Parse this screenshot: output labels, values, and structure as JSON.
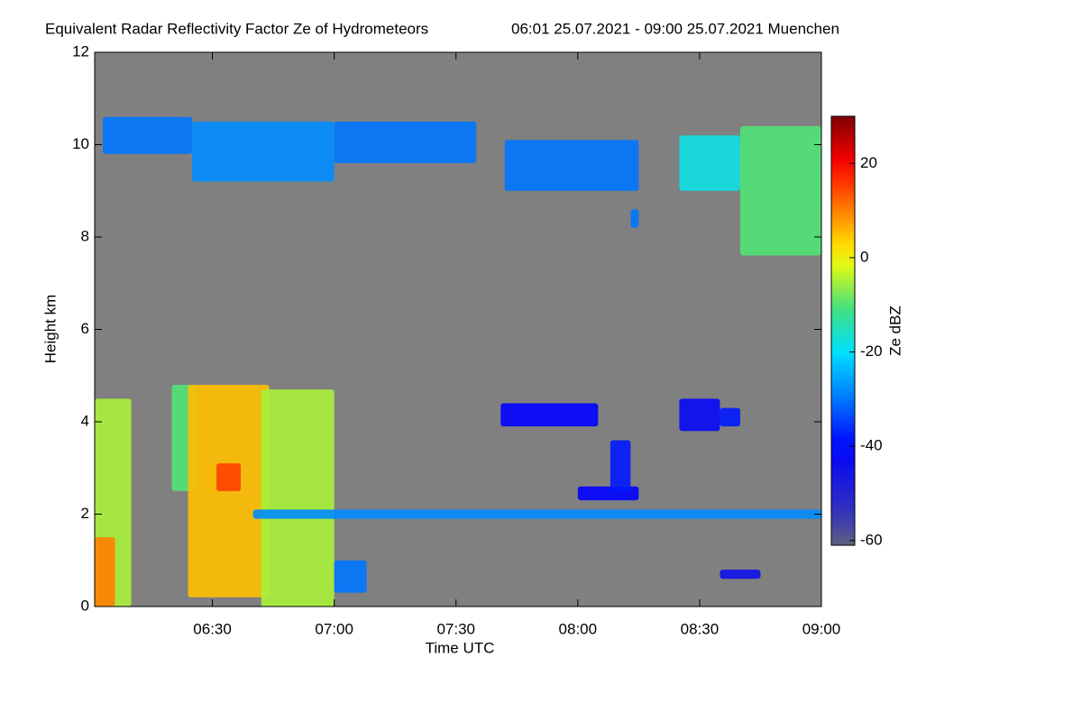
{
  "chart_data": {
    "type": "heatmap",
    "title": "Equivalent Radar Reflectivity Factor Ze of Hydrometeors",
    "subtitle": "06:01 25.07.2021 - 09:00 25.07.2021 Muenchen",
    "x_label": "Time UTC",
    "y_label": "Height km",
    "colorbar_label": "Ze dBZ",
    "xlim": [
      361,
      540
    ],
    "xticks": [
      {
        "value": 390,
        "label": "06:30"
      },
      {
        "value": 420,
        "label": "07:00"
      },
      {
        "value": 450,
        "label": "07:30"
      },
      {
        "value": 480,
        "label": "08:00"
      },
      {
        "value": 510,
        "label": "08:30"
      },
      {
        "value": 540,
        "label": "09:00"
      }
    ],
    "ylim": [
      0,
      12
    ],
    "yticks": [
      0,
      2,
      4,
      6,
      8,
      10,
      12
    ],
    "clim": [
      -61,
      30
    ],
    "cticks": [
      20,
      0,
      -20,
      -40,
      -60
    ],
    "background": "#808080",
    "echoes": {
      "t0": [
        363,
        385,
        420,
        462,
        493,
        505,
        520,
        361,
        361,
        380,
        384,
        391,
        402,
        420,
        400,
        480,
        488,
        461,
        505,
        515,
        515
      ],
      "t1": [
        385,
        420,
        455,
        495,
        495,
        520,
        540,
        370,
        366,
        386,
        404,
        397,
        420,
        428,
        540,
        495,
        493,
        485,
        515,
        520,
        525
      ],
      "h0": [
        9.8,
        9.2,
        9.6,
        9.0,
        8.2,
        9.0,
        7.6,
        0,
        0,
        2.5,
        0.2,
        2.5,
        0,
        0.3,
        1.9,
        2.3,
        2.5,
        3.9,
        3.8,
        3.9,
        0.6
      ],
      "h1": [
        10.6,
        10.5,
        10.5,
        10.1,
        8.6,
        10.2,
        10.4,
        4.5,
        1.5,
        4.8,
        4.8,
        3.1,
        4.7,
        1.0,
        2.1,
        2.6,
        3.6,
        4.4,
        4.5,
        4.3,
        0.8
      ],
      "ze": [
        -30,
        -28,
        -30,
        -30,
        -30,
        -18,
        -10,
        -5,
        10,
        -10,
        5,
        15,
        -5,
        -30,
        -28,
        -40,
        -38,
        -40,
        -42,
        -38,
        -45
      ]
    }
  }
}
